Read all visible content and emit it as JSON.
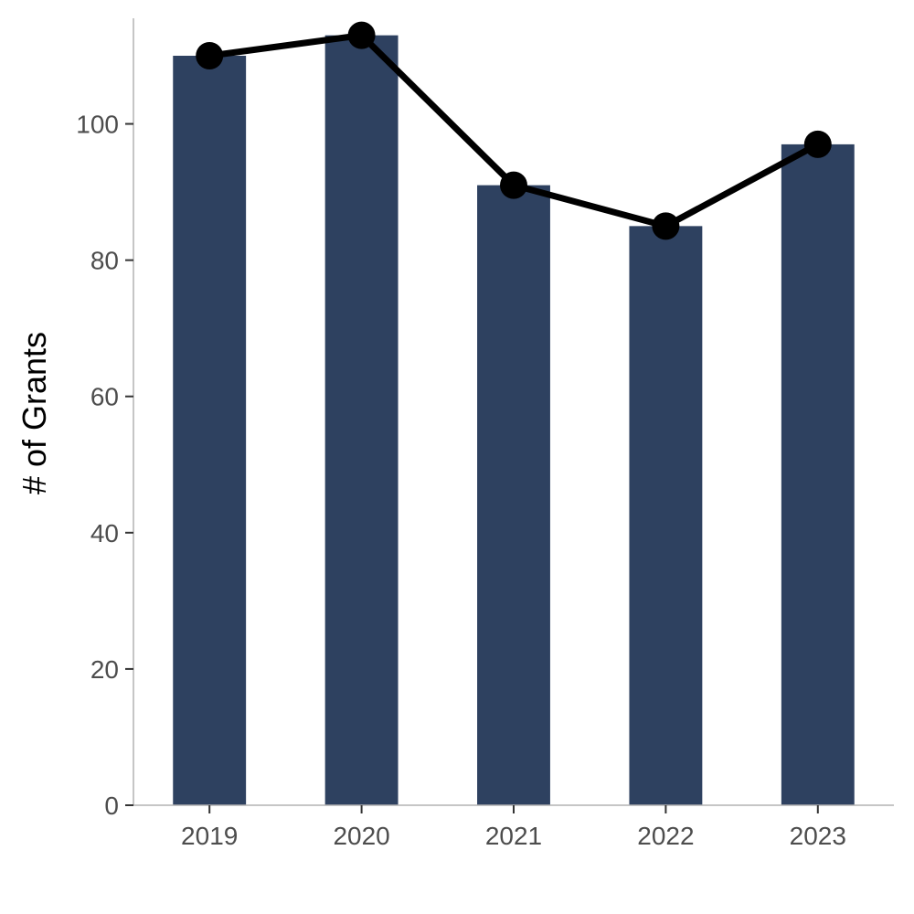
{
  "chart_data": {
    "type": "bar",
    "categories": [
      "2019",
      "2020",
      "2021",
      "2022",
      "2023"
    ],
    "values": [
      110,
      113,
      91,
      85,
      97
    ],
    "line_overlay": {
      "values": [
        110,
        113,
        91,
        85,
        97
      ],
      "color": "#000000"
    },
    "ylabel": "# of Grants",
    "xlabel": "",
    "ylim": [
      0,
      115.5
    ],
    "yticks": [
      0,
      20,
      40,
      60,
      80,
      100
    ],
    "grid": false,
    "colors": {
      "bar": "#2e4160",
      "line": "#000000",
      "axis": "#b3b3b3",
      "tick_text": "#4d4d4d"
    }
  }
}
